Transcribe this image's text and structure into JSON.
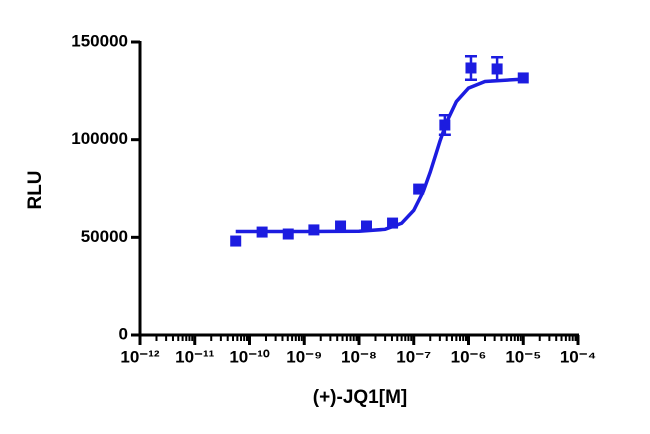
{
  "chart_data": {
    "type": "scatter",
    "xlabel": "(+)-JQ1[M]",
    "ylabel": "RLU",
    "xscale": "log",
    "xlim": [
      1e-12,
      0.0001
    ],
    "xticks": [
      {
        "value": 1e-12,
        "label": "10⁻¹²"
      },
      {
        "value": 1e-11,
        "label": "10⁻¹¹"
      },
      {
        "value": 1e-10,
        "label": "10⁻¹⁰"
      },
      {
        "value": 1e-09,
        "label": "10⁻⁹"
      },
      {
        "value": 1e-08,
        "label": "10⁻⁸"
      },
      {
        "value": 1e-07,
        "label": "10⁻⁷"
      },
      {
        "value": 1e-06,
        "label": "10⁻⁶"
      },
      {
        "value": 1e-05,
        "label": "10⁻⁵"
      },
      {
        "value": 0.0001,
        "label": "10⁻⁴"
      }
    ],
    "ylim": [
      0,
      150000
    ],
    "yticks": [
      0,
      50000,
      100000,
      150000
    ],
    "series": [
      {
        "color": "#1c1ce0",
        "kind": "points",
        "x": [
          5.6e-11,
          1.7e-10,
          5.1e-10,
          1.5e-09,
          4.6e-09,
          1.37e-08,
          4.1e-08,
          1.23e-07,
          3.7e-07,
          1.11e-06,
          3.33e-06,
          1e-05
        ],
        "values": [
          48100,
          52700,
          51700,
          53800,
          55800,
          55800,
          57300,
          74700,
          107500,
          136700,
          136200,
          131600
        ],
        "errors": [
          null,
          null,
          null,
          null,
          null,
          null,
          null,
          null,
          5000,
          6000,
          6000,
          null
        ]
      },
      {
        "color": "#1c1ce0",
        "kind": "curve",
        "x": [
          5.6e-11,
          1e-09,
          1e-08,
          3e-08,
          6e-08,
          1e-07,
          1.5e-07,
          2e-07,
          2.5e-07,
          3e-07,
          4e-07,
          6e-07,
          1e-06,
          2e-06,
          1e-05
        ],
        "values": [
          53000,
          53000,
          53100,
          54100,
          57200,
          63800,
          73600,
          83400,
          92000,
          99100,
          109100,
          119500,
          126400,
          129800,
          131000
        ]
      }
    ]
  }
}
